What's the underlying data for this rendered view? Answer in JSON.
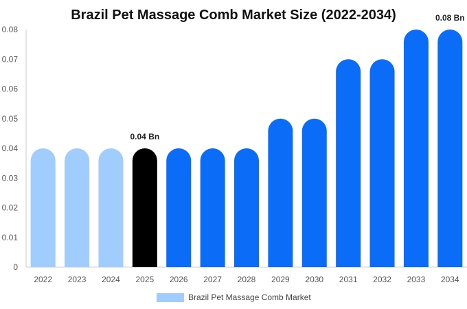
{
  "chart_data": {
    "type": "bar",
    "title": "Brazil Pet Massage Comb Market Size (2022-2034)",
    "xlabel": "",
    "ylabel": "",
    "categories": [
      "2022",
      "2023",
      "2024",
      "2025",
      "2026",
      "2027",
      "2028",
      "2029",
      "2030",
      "2031",
      "2032",
      "2033",
      "2034"
    ],
    "series": [
      {
        "name": "Brazil Pet Massage Comb Market",
        "values": [
          0.04,
          0.04,
          0.04,
          0.04,
          0.04,
          0.04,
          0.04,
          0.05,
          0.05,
          0.07,
          0.07,
          0.08,
          0.08
        ]
      }
    ],
    "ylim": [
      0,
      0.08
    ],
    "yticks": [
      "0",
      "0.01",
      "0.02",
      "0.03",
      "0.04",
      "0.05",
      "0.06",
      "0.07",
      "0.08"
    ],
    "bar_colors": [
      "#a0cdfd",
      "#a0cdfd",
      "#a0cdfd",
      "#000000",
      "#0a6cf7",
      "#0a6cf7",
      "#0a6cf7",
      "#0a6cf7",
      "#0a6cf7",
      "#0a6cf7",
      "#0a6cf7",
      "#0a6cf7",
      "#0a6cf7"
    ],
    "data_labels": [
      {
        "index": 3,
        "text": "0.04 Bn"
      },
      {
        "index": 12,
        "text": "0.08 Bn"
      }
    ],
    "legend": {
      "placement": "bottom-center",
      "swatch_color": "#a0cdfd"
    },
    "grid": false
  }
}
